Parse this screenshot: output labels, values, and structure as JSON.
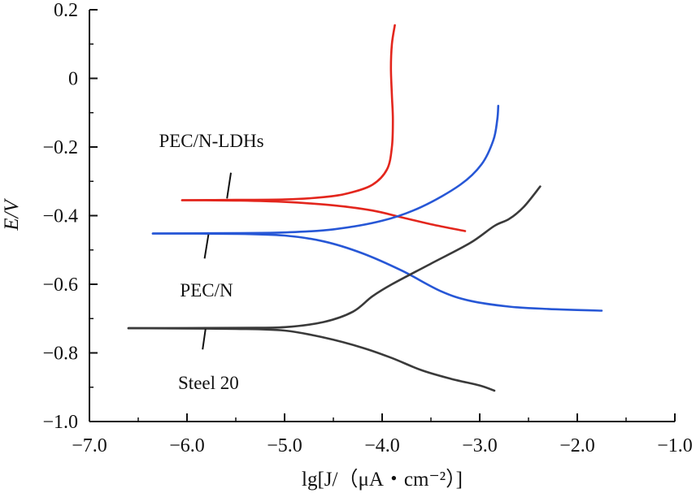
{
  "chart_data": {
    "type": "line",
    "xlabel": "lg[J/（μA・cm⁻²）]",
    "ylabel": "E/V",
    "xlim": [
      -7.0,
      -1.0
    ],
    "ylim": [
      -1.0,
      0.2
    ],
    "grid": false,
    "x_ticks": [
      "−7.0",
      "−6.0",
      "−5.0",
      "−4.0",
      "−3.0",
      "−2.0",
      "−1.0"
    ],
    "y_ticks": [
      "0.2",
      "0",
      "−0.2",
      "−0.4",
      "−0.6",
      "−0.8",
      "−1.0"
    ],
    "series": [
      {
        "name": "PEC/N-LDHs",
        "color": "#e3261d",
        "branches": [
          [
            [
              -6.05,
              -0.355
            ],
            [
              -5.5,
              -0.354
            ],
            [
              -5.0,
              -0.353
            ],
            [
              -4.6,
              -0.346
            ],
            [
              -4.35,
              -0.335
            ],
            [
              -4.1,
              -0.31
            ],
            [
              -3.95,
              -0.265
            ],
            [
              -3.9,
              -0.2
            ],
            [
              -3.89,
              -0.12
            ],
            [
              -3.9,
              -0.05
            ],
            [
              -3.91,
              0.03
            ],
            [
              -3.9,
              0.1
            ],
            [
              -3.87,
              0.155
            ]
          ],
          [
            [
              -6.05,
              -0.355
            ],
            [
              -5.5,
              -0.356
            ],
            [
              -5.0,
              -0.36
            ],
            [
              -4.5,
              -0.37
            ],
            [
              -4.1,
              -0.385
            ],
            [
              -3.8,
              -0.405
            ],
            [
              -3.5,
              -0.425
            ],
            [
              -3.15,
              -0.445
            ]
          ]
        ]
      },
      {
        "name": "PEC/N",
        "color": "#2757d6",
        "branches": [
          [
            [
              -6.35,
              -0.452
            ],
            [
              -5.5,
              -0.451
            ],
            [
              -5.0,
              -0.449
            ],
            [
              -4.5,
              -0.44
            ],
            [
              -4.0,
              -0.415
            ],
            [
              -3.6,
              -0.375
            ],
            [
              -3.2,
              -0.31
            ],
            [
              -2.98,
              -0.25
            ],
            [
              -2.86,
              -0.18
            ],
            [
              -2.82,
              -0.12
            ],
            [
              -2.81,
              -0.08
            ]
          ],
          [
            [
              -6.35,
              -0.452
            ],
            [
              -5.5,
              -0.453
            ],
            [
              -5.0,
              -0.458
            ],
            [
              -4.6,
              -0.475
            ],
            [
              -4.2,
              -0.51
            ],
            [
              -3.8,
              -0.56
            ],
            [
              -3.4,
              -0.62
            ],
            [
              -3.1,
              -0.648
            ],
            [
              -2.7,
              -0.665
            ],
            [
              -2.3,
              -0.672
            ],
            [
              -1.75,
              -0.677
            ]
          ]
        ]
      },
      {
        "name": "Steel 20",
        "color": "#3a3a3a",
        "branches": [
          [
            [
              -6.6,
              -0.728
            ],
            [
              -5.5,
              -0.727
            ],
            [
              -5.0,
              -0.725
            ],
            [
              -4.6,
              -0.71
            ],
            [
              -4.3,
              -0.68
            ],
            [
              -4.1,
              -0.635
            ],
            [
              -3.9,
              -0.6
            ],
            [
              -3.5,
              -0.54
            ],
            [
              -3.1,
              -0.48
            ],
            [
              -2.85,
              -0.43
            ],
            [
              -2.7,
              -0.41
            ],
            [
              -2.55,
              -0.375
            ],
            [
              -2.38,
              -0.315
            ]
          ],
          [
            [
              -6.6,
              -0.728
            ],
            [
              -5.5,
              -0.73
            ],
            [
              -5.0,
              -0.735
            ],
            [
              -4.6,
              -0.755
            ],
            [
              -4.2,
              -0.785
            ],
            [
              -3.9,
              -0.815
            ],
            [
              -3.6,
              -0.85
            ],
            [
              -3.3,
              -0.875
            ],
            [
              -3.0,
              -0.895
            ],
            [
              -2.85,
              -0.91
            ]
          ]
        ]
      }
    ]
  }
}
